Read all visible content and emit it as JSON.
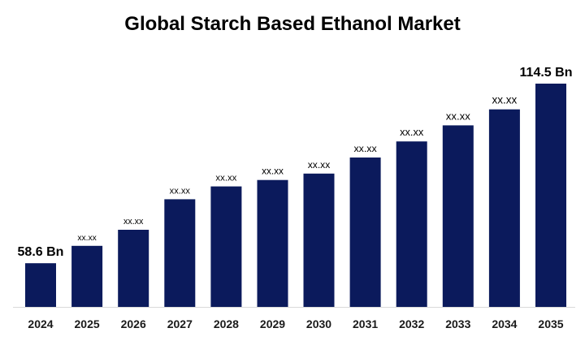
{
  "chart_data": {
    "type": "bar",
    "title": "Global Starch Based Ethanol Market",
    "categories": [
      "2024",
      "2025",
      "2026",
      "2027",
      "2028",
      "2029",
      "2030",
      "2031",
      "2032",
      "2033",
      "2034",
      "2035"
    ],
    "values": [
      58.6,
      64.0,
      69.0,
      78.5,
      82.5,
      84.5,
      86.5,
      91.5,
      96.5,
      101.5,
      106.5,
      114.5
    ],
    "data_labels": [
      "58.6 Bn",
      "xx.xx",
      "xx.xx",
      "xx.xx",
      "xx.xx",
      "xx.xx",
      "xx.xx",
      "xx.xx",
      "xx.xx",
      "xx.xx",
      "xx.xx",
      "114.5 Bn"
    ],
    "bar_color": "#0b1a5c",
    "axis_line_color": "#d9d9d9",
    "xlabel": "",
    "ylabel": "",
    "ylim": [
      45,
      118
    ],
    "grid": false,
    "legend": "none"
  }
}
